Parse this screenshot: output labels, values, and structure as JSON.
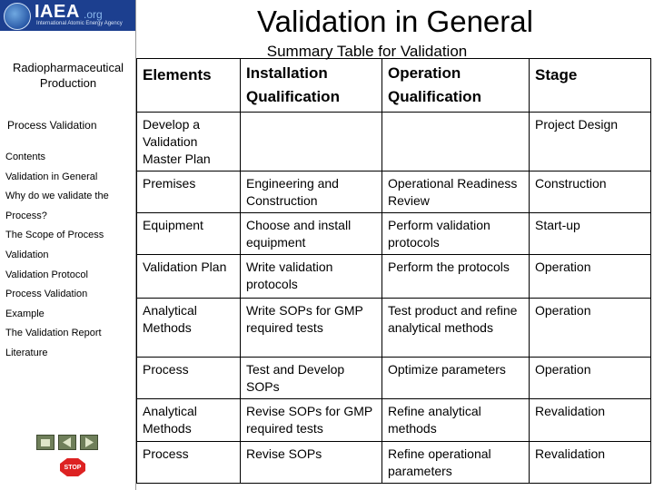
{
  "logo": {
    "name": "IAEA",
    "suffix": ".org",
    "agency": "International Atomic Energy Agency"
  },
  "sidebar": {
    "title": "Radiopharmaceutical Production",
    "section": "Process Validation",
    "nav": [
      "Contents",
      "Validation in General",
      "Why do we validate the",
      "Process?",
      "The Scope of Process",
      "Validation",
      "Validation Protocol",
      "Process Validation",
      "Example",
      "The Validation Report",
      "Literature"
    ],
    "stop_label": "STOP"
  },
  "title": "Validation in General",
  "subtitle": "Summary Table for Validation",
  "table": {
    "headers": [
      "Elements",
      "Installation Qualification",
      "Operation Qualification",
      "Stage"
    ],
    "rows": [
      [
        "Develop a Validation Master Plan",
        "",
        "",
        "Project Design"
      ],
      [
        "Premises",
        "Engineering and Construction",
        "Operational Readiness Review",
        "Construction"
      ],
      [
        "Equipment",
        "Choose and install equipment",
        "Perform validation protocols",
        "Start-up"
      ],
      [
        "Validation Plan",
        "Write validation protocols",
        "Perform the protocols",
        "Operation"
      ],
      [
        "Analytical Methods",
        "Write SOPs for GMP required tests",
        "Test product and refine analytical methods",
        "Operation"
      ],
      [
        "Process",
        "Test and Develop SOPs",
        "Optimize parameters",
        "Operation"
      ],
      [
        "Analytical Methods",
        "Revise SOPs for GMP required tests",
        "Refine analytical methods",
        "Revalidation"
      ],
      [
        "Process",
        "Revise SOPs",
        "Refine operational parameters",
        "Revalidation"
      ]
    ]
  }
}
